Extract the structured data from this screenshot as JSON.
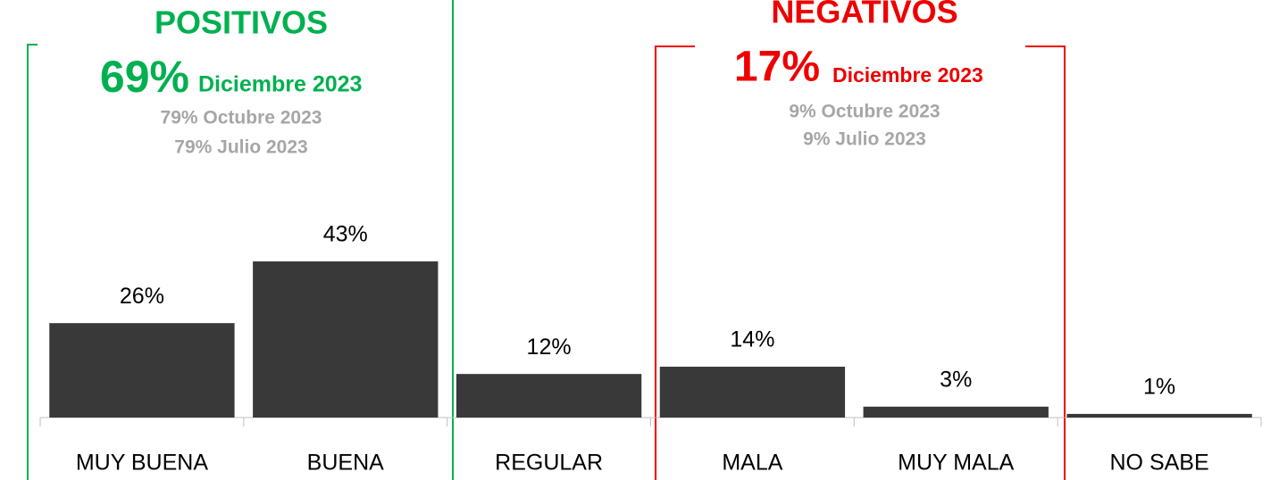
{
  "chart_data": {
    "type": "bar",
    "categories": [
      "MUY BUENA",
      "BUENA",
      "REGULAR",
      "MALA",
      "MUY MALA",
      "NO SABE"
    ],
    "values": [
      26,
      43,
      12,
      14,
      3,
      1
    ],
    "value_labels": [
      "26%",
      "43%",
      "12%",
      "14%",
      "3%",
      "1%"
    ],
    "color": "#3a3939",
    "annotations": {
      "positive": {
        "heading": "POSITIVOS",
        "current": "69%",
        "period": "Diciembre 2023",
        "previous": [
          "79% Octubre 2023",
          "79% Julio 2023"
        ]
      },
      "negative": {
        "heading": "NEGATIVOS",
        "current": "17%",
        "period": "Diciembre 2023",
        "previous": [
          "9% Octubre 2023",
          "9% Julio 2023"
        ]
      }
    }
  }
}
